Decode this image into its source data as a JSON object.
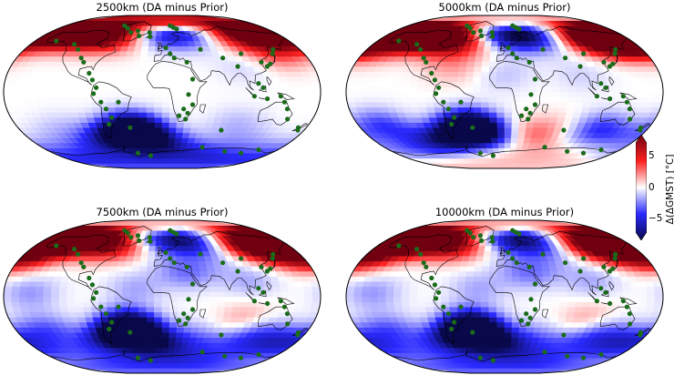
{
  "panels": [
    {
      "title": "2500km (DA minus Prior)",
      "fields": [
        {
          "lon": -150,
          "lat": 72,
          "v": 7.5
        },
        {
          "lon": -100,
          "lat": 70,
          "v": 6.5
        },
        {
          "lon": -60,
          "lat": 68,
          "v": 4.5
        },
        {
          "lon": -15,
          "lat": 78,
          "v": -5
        },
        {
          "lon": 10,
          "lat": 75,
          "v": -4
        },
        {
          "lon": 45,
          "lat": 70,
          "v": -2.5
        },
        {
          "lon": 110,
          "lat": 72,
          "v": 3
        },
        {
          "lon": 150,
          "lat": 68,
          "v": 7
        },
        {
          "lon": 145,
          "lat": 45,
          "v": 2.5
        },
        {
          "lon": 100,
          "lat": 30,
          "v": -0.8
        },
        {
          "lon": -40,
          "lat": -45,
          "v": -8
        },
        {
          "lon": -35,
          "lat": -50,
          "v": -6
        },
        {
          "lon": -120,
          "lat": -45,
          "v": -1.2
        },
        {
          "lon": 90,
          "lat": -38,
          "v": -1.2
        },
        {
          "lon": 0,
          "lat": -72,
          "v": -2.5
        },
        {
          "lon": 110,
          "lat": -68,
          "v": -2
        },
        {
          "lon": -150,
          "lat": -72,
          "v": -1.5
        }
      ]
    },
    {
      "title": "5000km (DA minus Prior)",
      "fields": [
        {
          "lon": -140,
          "lat": 72,
          "v": 8
        },
        {
          "lon": -90,
          "lat": 65,
          "v": 7
        },
        {
          "lon": -55,
          "lat": 62,
          "v": 4
        },
        {
          "lon": -15,
          "lat": 78,
          "v": -7
        },
        {
          "lon": 20,
          "lat": 70,
          "v": -6
        },
        {
          "lon": 60,
          "lat": 68,
          "v": -3
        },
        {
          "lon": 130,
          "lat": 65,
          "v": 8
        },
        {
          "lon": 160,
          "lat": 60,
          "v": 7
        },
        {
          "lon": -165,
          "lat": 55,
          "v": 3
        },
        {
          "lon": 0,
          "lat": 20,
          "v": -1
        },
        {
          "lon": 90,
          "lat": 20,
          "v": -0.8
        },
        {
          "lon": -60,
          "lat": 30,
          "v": 1.5
        },
        {
          "lon": -40,
          "lat": -48,
          "v": -9
        },
        {
          "lon": -45,
          "lat": -40,
          "v": -6
        },
        {
          "lon": 20,
          "lat": -55,
          "v": 2.5
        },
        {
          "lon": 60,
          "lat": -45,
          "v": 1.5
        },
        {
          "lon": 120,
          "lat": -45,
          "v": -4
        },
        {
          "lon": -150,
          "lat": -40,
          "v": -3.5
        },
        {
          "lon": -100,
          "lat": -60,
          "v": -2
        },
        {
          "lon": 20,
          "lat": -75,
          "v": 2
        }
      ]
    },
    {
      "title": "7500km (DA minus Prior)",
      "fields": [
        {
          "lon": -140,
          "lat": 72,
          "v": 8
        },
        {
          "lon": -80,
          "lat": 65,
          "v": 6.5
        },
        {
          "lon": -40,
          "lat": 62,
          "v": 2
        },
        {
          "lon": -15,
          "lat": 78,
          "v": -5
        },
        {
          "lon": 20,
          "lat": 72,
          "v": -5
        },
        {
          "lon": 60,
          "lat": 68,
          "v": -4
        },
        {
          "lon": 130,
          "lat": 65,
          "v": 8.5
        },
        {
          "lon": 165,
          "lat": 55,
          "v": 6
        },
        {
          "lon": -170,
          "lat": 50,
          "v": 4
        },
        {
          "lon": 30,
          "lat": 30,
          "v": -2.5
        },
        {
          "lon": 100,
          "lat": 20,
          "v": -1.5
        },
        {
          "lon": -30,
          "lat": 10,
          "v": -1.5
        },
        {
          "lon": -150,
          "lat": 5,
          "v": -1.8
        },
        {
          "lon": -40,
          "lat": -45,
          "v": -9.5
        },
        {
          "lon": -40,
          "lat": -35,
          "v": -7
        },
        {
          "lon": 40,
          "lat": -50,
          "v": -2.5
        },
        {
          "lon": 120,
          "lat": -45,
          "v": -4
        },
        {
          "lon": -140,
          "lat": -40,
          "v": -3
        },
        {
          "lon": 170,
          "lat": -55,
          "v": -3
        },
        {
          "lon": 0,
          "lat": -78,
          "v": -3
        },
        {
          "lon": 100,
          "lat": -28,
          "v": 2
        }
      ]
    },
    {
      "title": "10000km (DA minus Prior)",
      "fields": [
        {
          "lon": -140,
          "lat": 72,
          "v": 8.5
        },
        {
          "lon": -80,
          "lat": 65,
          "v": 6.5
        },
        {
          "lon": -40,
          "lat": 62,
          "v": 2
        },
        {
          "lon": -15,
          "lat": 78,
          "v": -5
        },
        {
          "lon": 20,
          "lat": 72,
          "v": -5
        },
        {
          "lon": 60,
          "lat": 68,
          "v": -4
        },
        {
          "lon": 130,
          "lat": 65,
          "v": 8.5
        },
        {
          "lon": 165,
          "lat": 55,
          "v": 6
        },
        {
          "lon": -170,
          "lat": 50,
          "v": 4
        },
        {
          "lon": 30,
          "lat": 30,
          "v": -2.5
        },
        {
          "lon": 100,
          "lat": 20,
          "v": -1.5
        },
        {
          "lon": -30,
          "lat": 10,
          "v": -1.5
        },
        {
          "lon": -150,
          "lat": 5,
          "v": -1.8
        },
        {
          "lon": -40,
          "lat": -45,
          "v": -9.5
        },
        {
          "lon": -40,
          "lat": -35,
          "v": -7
        },
        {
          "lon": 40,
          "lat": -50,
          "v": -2.5
        },
        {
          "lon": 120,
          "lat": -45,
          "v": -4
        },
        {
          "lon": -140,
          "lat": -40,
          "v": -3
        },
        {
          "lon": 170,
          "lat": -55,
          "v": -3
        },
        {
          "lon": 0,
          "lat": -78,
          "v": -3
        },
        {
          "lon": 100,
          "lat": -28,
          "v": 2
        }
      ]
    }
  ],
  "sites": [
    [
      -70,
      78
    ],
    [
      -60,
      75
    ],
    [
      -50,
      70
    ],
    [
      -40,
      72
    ],
    [
      -35,
      66
    ],
    [
      -20,
      70
    ],
    [
      -18,
      65
    ],
    [
      15,
      78
    ],
    [
      20,
      76
    ],
    [
      25,
      74
    ],
    [
      -150,
      60
    ],
    [
      -120,
      56
    ],
    [
      -110,
      50
    ],
    [
      -100,
      40
    ],
    [
      -95,
      35
    ],
    [
      -85,
      22
    ],
    [
      -80,
      14
    ],
    [
      -75,
      5
    ],
    [
      -78,
      -2
    ],
    [
      -70,
      -12
    ],
    [
      -65,
      -20
    ],
    [
      -60,
      -30
    ],
    [
      -65,
      -38
    ],
    [
      -40,
      -42
    ],
    [
      -50,
      -12
    ],
    [
      5,
      52
    ],
    [
      10,
      45
    ],
    [
      15,
      40
    ],
    [
      30,
      35
    ],
    [
      35,
      15
    ],
    [
      30,
      -3
    ],
    [
      35,
      -15
    ],
    [
      30,
      -25
    ],
    [
      20,
      -28
    ],
    [
      25,
      -20
    ],
    [
      28,
      -32
    ],
    [
      50,
      50
    ],
    [
      75,
      40
    ],
    [
      90,
      30
    ],
    [
      100,
      45
    ],
    [
      120,
      35
    ],
    [
      125,
      30
    ],
    [
      130,
      33
    ],
    [
      140,
      45
    ],
    [
      145,
      50
    ],
    [
      110,
      10
    ],
    [
      115,
      5
    ],
    [
      105,
      -5
    ],
    [
      120,
      -8
    ],
    [
      135,
      -5
    ],
    [
      140,
      -12
    ],
    [
      145,
      -20
    ],
    [
      150,
      -32
    ],
    [
      170,
      -42
    ],
    [
      172,
      -45
    ],
    [
      75,
      -45
    ],
    [
      60,
      -65
    ],
    [
      100,
      -70
    ],
    [
      130,
      -72
    ],
    [
      -20,
      -75
    ],
    [
      -40,
      -72
    ],
    [
      150,
      -68
    ]
  ],
  "colorbar": {
    "label": "Δ(ΔGMST) [°C]",
    "range": [
      -7.5,
      7.5
    ],
    "ticks": [
      {
        "value": 5,
        "label": "5"
      },
      {
        "value": 0,
        "label": "0"
      },
      {
        "value": -5,
        "label": "−5"
      }
    ],
    "colors": {
      "low": "#08084a",
      "mid_low": "#2a2aff",
      "mid": "#ffffff",
      "mid_high": "#ff2020",
      "high": "#700010"
    }
  },
  "colors": {
    "site_marker": "#1a6b1a",
    "coastline": "#000000",
    "frame": "#000000"
  }
}
